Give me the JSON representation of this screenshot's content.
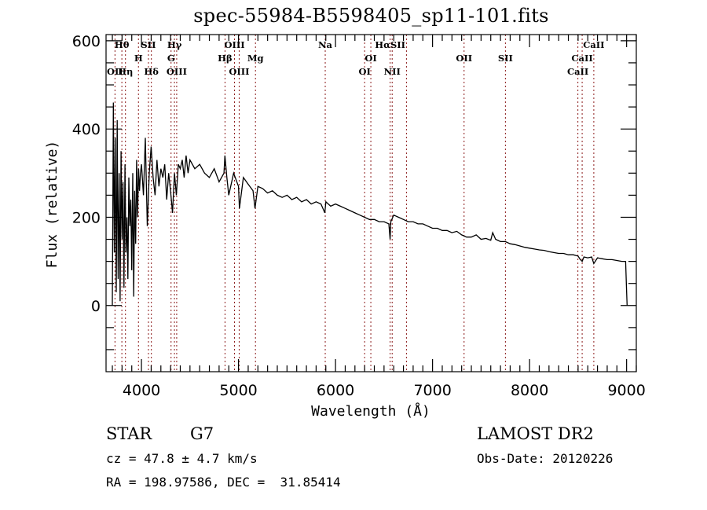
{
  "chart_data": {
    "type": "line",
    "title": "spec-55984-B5598405_sp11-101.fits",
    "xlabel": "Wavelength (Å)",
    "ylabel": "Flux (relative)",
    "xlim": [
      3635,
      9100
    ],
    "ylim": [
      -150,
      614
    ],
    "xticks": [
      4000,
      5000,
      6000,
      7000,
      8000,
      9000
    ],
    "xtick_labels": [
      "4000",
      "5000",
      "6000",
      "7000",
      "8000",
      "9000"
    ],
    "yticks": [
      0,
      200,
      400,
      600
    ],
    "ytick_labels": [
      "0",
      "200",
      "400",
      "600"
    ],
    "grid": false,
    "line_color": "#000000",
    "marker_color": "#8b1a1a",
    "series": [
      {
        "name": "spectrum",
        "x": [
          3700,
          3710,
          3720,
          3730,
          3740,
          3750,
          3760,
          3770,
          3780,
          3790,
          3800,
          3810,
          3820,
          3830,
          3840,
          3850,
          3860,
          3870,
          3880,
          3890,
          3900,
          3910,
          3920,
          3930,
          3940,
          3950,
          3960,
          3970,
          3980,
          3990,
          4000,
          4020,
          4040,
          4060,
          4080,
          4100,
          4120,
          4140,
          4160,
          4180,
          4200,
          4220,
          4240,
          4260,
          4280,
          4300,
          4320,
          4340,
          4360,
          4380,
          4400,
          4420,
          4440,
          4460,
          4480,
          4500,
          4550,
          4600,
          4650,
          4700,
          4750,
          4800,
          4850,
          4860,
          4880,
          4900,
          4950,
          5000,
          5010,
          5050,
          5100,
          5150,
          5170,
          5200,
          5250,
          5300,
          5350,
          5400,
          5450,
          5500,
          5550,
          5600,
          5650,
          5700,
          5750,
          5800,
          5850,
          5890,
          5900,
          5950,
          6000,
          6050,
          6100,
          6150,
          6200,
          6250,
          6300,
          6350,
          6400,
          6450,
          6500,
          6550,
          6563,
          6570,
          6600,
          6650,
          6700,
          6750,
          6800,
          6850,
          6900,
          6950,
          7000,
          7050,
          7100,
          7150,
          7200,
          7250,
          7300,
          7350,
          7400,
          7450,
          7500,
          7550,
          7600,
          7620,
          7650,
          7700,
          7750,
          7800,
          7850,
          7900,
          7950,
          8000,
          8050,
          8100,
          8150,
          8200,
          8250,
          8300,
          8350,
          8400,
          8450,
          8500,
          8520,
          8542,
          8560,
          8600,
          8640,
          8662,
          8700,
          8750,
          8800,
          8850,
          8900,
          8950,
          8990,
          9000,
          9005
        ],
        "y": [
          0,
          460,
          120,
          380,
          30,
          420,
          60,
          300,
          10,
          350,
          150,
          280,
          40,
          320,
          120,
          200,
          60,
          290,
          180,
          240,
          80,
          300,
          20,
          260,
          140,
          330,
          200,
          310,
          260,
          300,
          320,
          250,
          380,
          180,
          300,
          360,
          290,
          250,
          330,
          270,
          310,
          290,
          320,
          240,
          300,
          260,
          210,
          300,
          250,
          320,
          310,
          330,
          290,
          340,
          300,
          330,
          310,
          320,
          300,
          290,
          310,
          280,
          300,
          340,
          290,
          250,
          300,
          270,
          220,
          290,
          275,
          260,
          220,
          270,
          265,
          255,
          260,
          250,
          245,
          250,
          240,
          245,
          235,
          240,
          230,
          235,
          230,
          210,
          235,
          225,
          230,
          225,
          220,
          215,
          210,
          205,
          200,
          195,
          195,
          190,
          190,
          185,
          150,
          190,
          205,
          200,
          195,
          190,
          190,
          185,
          185,
          180,
          175,
          175,
          170,
          170,
          165,
          168,
          160,
          155,
          155,
          160,
          150,
          152,
          148,
          165,
          150,
          145,
          145,
          140,
          138,
          135,
          132,
          130,
          128,
          126,
          125,
          122,
          120,
          118,
          118,
          115,
          115,
          112,
          105,
          100,
          110,
          108,
          110,
          95,
          108,
          106,
          104,
          104,
          102,
          100,
          100,
          35,
          0
        ]
      }
    ],
    "spectral_lines": [
      {
        "label": "Hθ",
        "wavelength": 3798,
        "row": 1
      },
      {
        "label": "OII",
        "wavelength": 3727,
        "row": 3
      },
      {
        "label": "Hη",
        "wavelength": 3835,
        "row": 3
      },
      {
        "label": "SII",
        "wavelength": 4072,
        "row": 1
      },
      {
        "label": "H",
        "wavelength": 3969,
        "row": 2
      },
      {
        "label": "Hδ",
        "wavelength": 4102,
        "row": 3
      },
      {
        "label": "Hγ",
        "wavelength": 4340,
        "row": 1
      },
      {
        "label": "G",
        "wavelength": 4305,
        "row": 2
      },
      {
        "label": "OIII",
        "wavelength": 4363,
        "row": 3
      },
      {
        "label": "OIII",
        "wavelength": 4959,
        "row": 1
      },
      {
        "label": "Hβ",
        "wavelength": 4861,
        "row": 2
      },
      {
        "label": "OIII",
        "wavelength": 5007,
        "row": 3
      },
      {
        "label": "Mg",
        "wavelength": 5175,
        "row": 2
      },
      {
        "label": "Na",
        "wavelength": 5894,
        "row": 1
      },
      {
        "label": "OI",
        "wavelength": 6364,
        "row": 2
      },
      {
        "label": "OI",
        "wavelength": 6300,
        "row": 3
      },
      {
        "label": "HαSII",
        "wavelength": 6563,
        "row": 1
      },
      {
        "label": "NII",
        "wavelength": 6584,
        "row": 3
      },
      {
        "label": "",
        "wavelength": 6731,
        "row": 0
      },
      {
        "label": "OII",
        "wavelength": 7325,
        "row": 2
      },
      {
        "label": "SII",
        "wavelength": 7751,
        "row": 2
      },
      {
        "label": "CaII",
        "wavelength": 8662,
        "row": 1
      },
      {
        "label": "CaII",
        "wavelength": 8542,
        "row": 2
      },
      {
        "label": "CaII",
        "wavelength": 8498,
        "row": 3
      }
    ]
  },
  "info": {
    "object_class": "STAR",
    "subclass": "G7",
    "redshift": "cz = 47.8 ± 4.7 km/s",
    "coords": "RA = 198.97586, DEC =  31.85414",
    "survey": "LAMOST DR2",
    "obs_date": "Obs-Date: 20120226"
  }
}
